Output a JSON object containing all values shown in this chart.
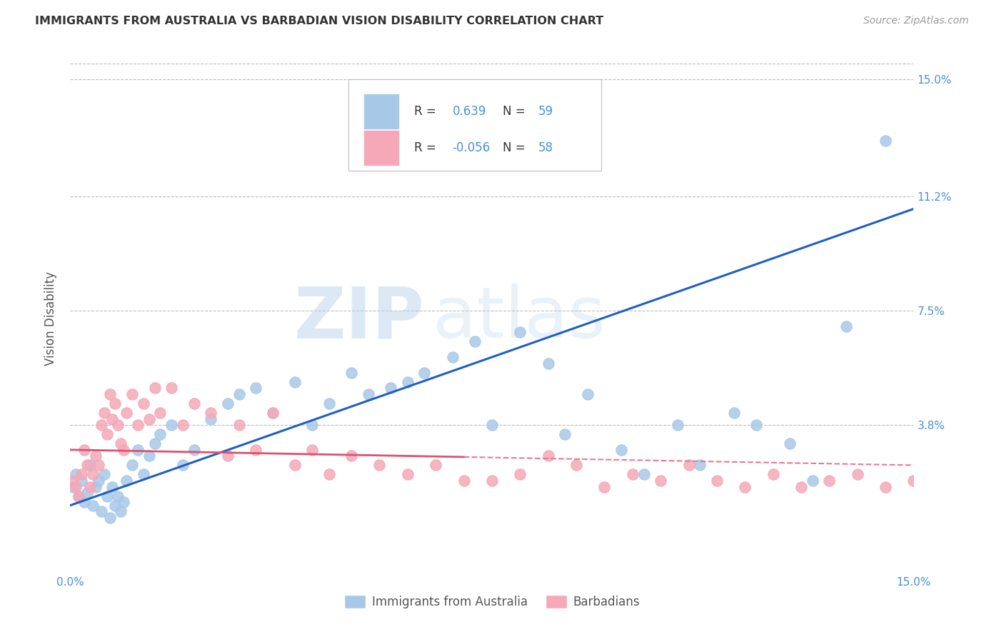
{
  "title": "IMMIGRANTS FROM AUSTRALIA VS BARBADIAN VISION DISABILITY CORRELATION CHART",
  "source": "Source: ZipAtlas.com",
  "ylabel": "Vision Disability",
  "xmin": 0.0,
  "xmax": 0.15,
  "ymin": -0.01,
  "ymax": 0.155,
  "yticks": [
    0.038,
    0.075,
    0.112,
    0.15
  ],
  "ytick_labels": [
    "3.8%",
    "7.5%",
    "11.2%",
    "15.0%"
  ],
  "watermark_zip": "ZIP",
  "watermark_atlas": "atlas",
  "blue_color": "#a8c8e8",
  "pink_color": "#f4a8b8",
  "blue_line_color": "#2060c0",
  "pink_line_color": "#e05070",
  "pink_line_dash": "#e87898",
  "grid_color": "#bbbbbb",
  "title_color": "#333333",
  "axis_label_color": "#4a90d9",
  "legend_text_color": "#4a90d9",
  "blue_scatter_x": [
    0.0005,
    0.001,
    0.0015,
    0.002,
    0.0025,
    0.003,
    0.0035,
    0.004,
    0.0045,
    0.005,
    0.0055,
    0.006,
    0.0065,
    0.007,
    0.0075,
    0.008,
    0.0085,
    0.009,
    0.0095,
    0.01,
    0.011,
    0.012,
    0.013,
    0.014,
    0.015,
    0.016,
    0.018,
    0.02,
    0.022,
    0.025,
    0.028,
    0.03,
    0.033,
    0.036,
    0.04,
    0.043,
    0.046,
    0.05,
    0.053,
    0.057,
    0.06,
    0.063,
    0.068,
    0.072,
    0.075,
    0.08,
    0.085,
    0.088,
    0.092,
    0.098,
    0.102,
    0.108,
    0.112,
    0.118,
    0.122,
    0.128,
    0.132,
    0.138,
    0.145
  ],
  "blue_scatter_y": [
    0.018,
    0.022,
    0.015,
    0.02,
    0.013,
    0.016,
    0.025,
    0.012,
    0.018,
    0.02,
    0.01,
    0.022,
    0.015,
    0.008,
    0.018,
    0.012,
    0.015,
    0.01,
    0.013,
    0.02,
    0.025,
    0.03,
    0.022,
    0.028,
    0.032,
    0.035,
    0.038,
    0.025,
    0.03,
    0.04,
    0.045,
    0.048,
    0.05,
    0.042,
    0.052,
    0.038,
    0.045,
    0.055,
    0.048,
    0.05,
    0.052,
    0.055,
    0.06,
    0.065,
    0.038,
    0.068,
    0.058,
    0.035,
    0.048,
    0.03,
    0.022,
    0.038,
    0.025,
    0.042,
    0.038,
    0.032,
    0.02,
    0.07,
    0.13
  ],
  "pink_scatter_x": [
    0.0005,
    0.001,
    0.0015,
    0.002,
    0.0025,
    0.003,
    0.0035,
    0.004,
    0.0045,
    0.005,
    0.0055,
    0.006,
    0.0065,
    0.007,
    0.0075,
    0.008,
    0.0085,
    0.009,
    0.0095,
    0.01,
    0.011,
    0.012,
    0.013,
    0.014,
    0.015,
    0.016,
    0.018,
    0.02,
    0.022,
    0.025,
    0.028,
    0.03,
    0.033,
    0.036,
    0.04,
    0.043,
    0.046,
    0.05,
    0.055,
    0.06,
    0.065,
    0.07,
    0.075,
    0.08,
    0.085,
    0.09,
    0.095,
    0.1,
    0.105,
    0.11,
    0.115,
    0.12,
    0.125,
    0.13,
    0.135,
    0.14,
    0.145,
    0.15
  ],
  "pink_scatter_y": [
    0.02,
    0.018,
    0.015,
    0.022,
    0.03,
    0.025,
    0.018,
    0.022,
    0.028,
    0.025,
    0.038,
    0.042,
    0.035,
    0.048,
    0.04,
    0.045,
    0.038,
    0.032,
    0.03,
    0.042,
    0.048,
    0.038,
    0.045,
    0.04,
    0.05,
    0.042,
    0.05,
    0.038,
    0.045,
    0.042,
    0.028,
    0.038,
    0.03,
    0.042,
    0.025,
    0.03,
    0.022,
    0.028,
    0.025,
    0.022,
    0.025,
    0.02,
    0.02,
    0.022,
    0.028,
    0.025,
    0.018,
    0.022,
    0.02,
    0.025,
    0.02,
    0.018,
    0.022,
    0.018,
    0.02,
    0.022,
    0.018,
    0.02
  ],
  "blue_line_start_x": 0.0,
  "blue_line_start_y": 0.012,
  "blue_line_end_x": 0.15,
  "blue_line_end_y": 0.108,
  "pink_line_start_x": 0.0,
  "pink_line_start_y": 0.03,
  "pink_line_end_x": 0.15,
  "pink_line_end_y": 0.025
}
